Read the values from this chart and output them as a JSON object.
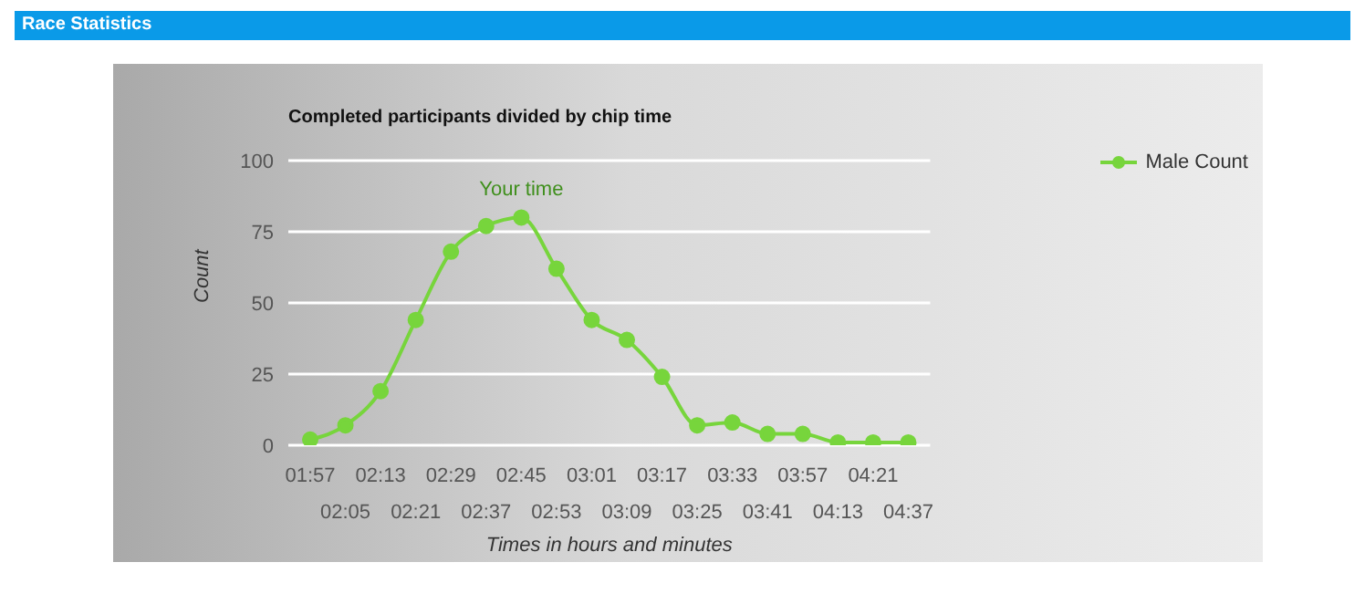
{
  "chart_data": {
    "type": "line",
    "title": "Completed participants divided by chip time",
    "xlabel": "Times in hours and minutes",
    "ylabel": "Count",
    "categories": [
      "01:57",
      "02:05",
      "02:13",
      "02:21",
      "02:29",
      "02:37",
      "02:45",
      "02:53",
      "03:01",
      "03:09",
      "03:17",
      "03:25",
      "03:33",
      "03:41",
      "03:57",
      "04:13",
      "04:21",
      "04:37"
    ],
    "series": [
      {
        "name": "Male Count",
        "color": "#77d53c",
        "values": [
          2,
          7,
          19,
          44,
          68,
          77,
          80,
          62,
          44,
          37,
          24,
          7,
          8,
          4,
          4,
          1,
          1,
          1
        ]
      }
    ],
    "ylim": [
      0,
      100
    ],
    "yticks": [
      0,
      25,
      50,
      75,
      100
    ],
    "grid": "y",
    "legend": "top right",
    "marker": "circle",
    "line_style": "solid",
    "annotations": [
      "Race Statistics",
      {
        "text": "Your time",
        "x": "02:45",
        "y": 80
      }
    ]
  }
}
